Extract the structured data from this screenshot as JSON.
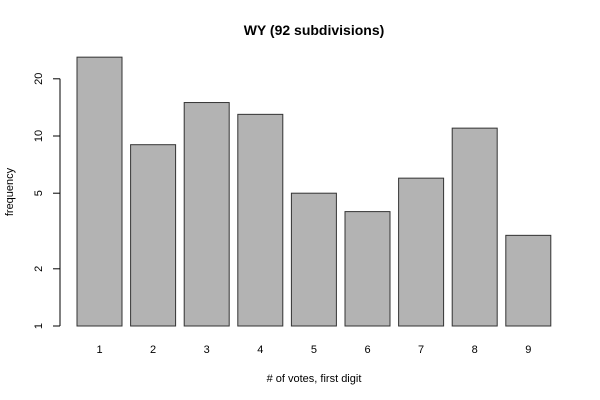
{
  "chart_data": {
    "type": "bar",
    "title": "WY (92 subdivisions)",
    "xlabel": "# of votes, first digit",
    "ylabel": "frequency",
    "y_scale": "log",
    "ylim": [
      1,
      26
    ],
    "yticks": [
      1,
      2,
      5,
      10,
      20
    ],
    "categories": [
      "1",
      "2",
      "3",
      "4",
      "5",
      "6",
      "7",
      "8",
      "9"
    ],
    "values": [
      26,
      9,
      15,
      13,
      5,
      4,
      6,
      11,
      3
    ],
    "grid": false,
    "bar_color": "#b3b3b3",
    "bar_edge_color": "#333333"
  }
}
